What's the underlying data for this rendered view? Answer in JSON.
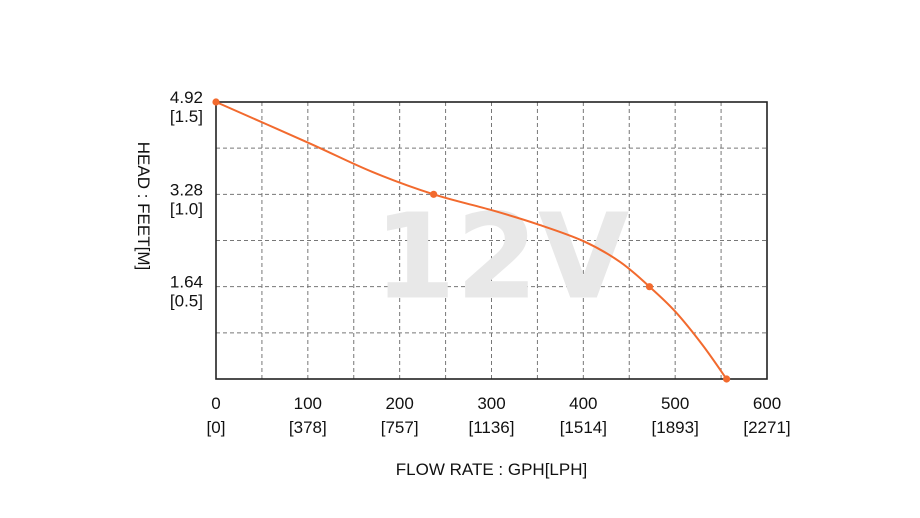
{
  "chart_data": {
    "type": "line",
    "title": "",
    "watermark": "12V",
    "xlabel": "FLOW RATE : GPH[LPH]",
    "ylabel": "HEAD : FEET[M]",
    "xlim": [
      0,
      600
    ],
    "ylim": [
      0,
      4.92
    ],
    "grid": true,
    "x_ticks": [
      {
        "value": 0,
        "label": "0",
        "sublabel": "[0]"
      },
      {
        "value": 100,
        "label": "100",
        "sublabel": "[378]"
      },
      {
        "value": 200,
        "label": "200",
        "sublabel": "[757]"
      },
      {
        "value": 300,
        "label": "300",
        "sublabel": "[1136]"
      },
      {
        "value": 400,
        "label": "400",
        "sublabel": "[1514]"
      },
      {
        "value": 500,
        "label": "500",
        "sublabel": "[1893]"
      },
      {
        "value": 600,
        "label": "600",
        "sublabel": "[2271]"
      }
    ],
    "y_ticks": [
      {
        "value": 4.92,
        "label": "4.92",
        "sublabel": "[1.5]"
      },
      {
        "value": 3.28,
        "label": "3.28",
        "sublabel": "[1.0]"
      },
      {
        "value": 1.64,
        "label": "1.64",
        "sublabel": "[0.5]"
      }
    ],
    "series": [
      {
        "color": "#f26a2e",
        "curve": [
          [
            0,
            4.92
          ],
          [
            100,
            4.2
          ],
          [
            170,
            3.68
          ],
          [
            237,
            3.28
          ],
          [
            300,
            3.0
          ],
          [
            350,
            2.75
          ],
          [
            400,
            2.45
          ],
          [
            440,
            2.08
          ],
          [
            472,
            1.64
          ],
          [
            500,
            1.2
          ],
          [
            530,
            0.6
          ],
          [
            556,
            0
          ]
        ],
        "markers": [
          [
            0,
            4.92
          ],
          [
            237,
            3.28
          ],
          [
            472,
            1.64
          ],
          [
            556,
            0
          ]
        ]
      }
    ]
  }
}
